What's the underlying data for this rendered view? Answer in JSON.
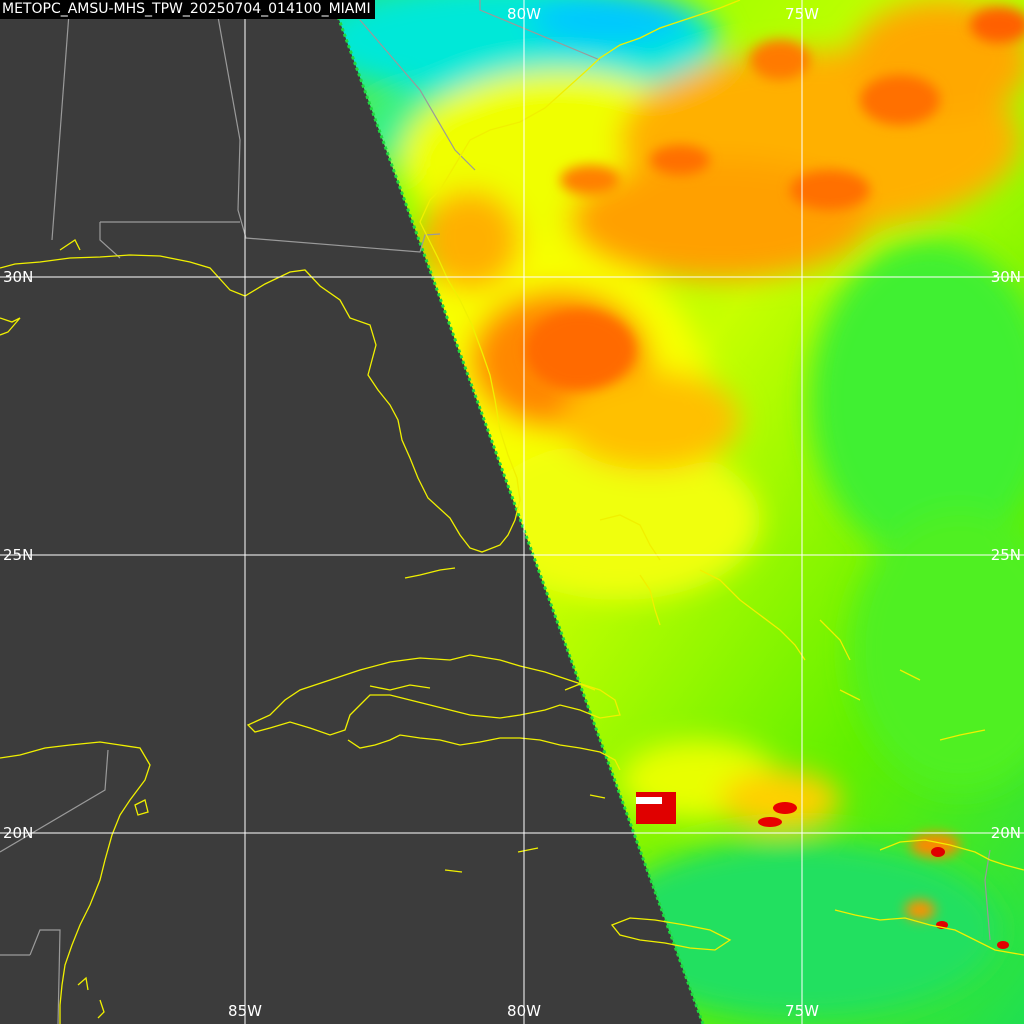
{
  "title": "METOPC_AMSU-MHS_TPW_20250704_014100_MIAMI",
  "graticule": {
    "longitudes": [
      {
        "label": "85W",
        "value": -85
      },
      {
        "label": "80W",
        "value": -80
      },
      {
        "label": "75W",
        "value": -75
      }
    ],
    "latitudes": [
      {
        "label": "30N",
        "value": 30
      },
      {
        "label": "25N",
        "value": 25
      },
      {
        "label": "20N",
        "value": 20
      }
    ],
    "line_color": "#ffffff"
  },
  "colors": {
    "background": "#3c3c3c",
    "coastline": "#f0f000",
    "political_borders": "#9a9a9a",
    "title_background": "#000000",
    "title_text": "#ffffff"
  },
  "tpw_color_scale": [
    "#00c8ff",
    "#00e060",
    "#80ff00",
    "#ffff00",
    "#ffa000",
    "#ff6000",
    "#e00000"
  ],
  "features": [
    "Florida",
    "Cuba",
    "Bahamas",
    "Jamaica",
    "Hispaniola",
    "Yucatan Peninsula",
    "Gulf Coast"
  ]
}
